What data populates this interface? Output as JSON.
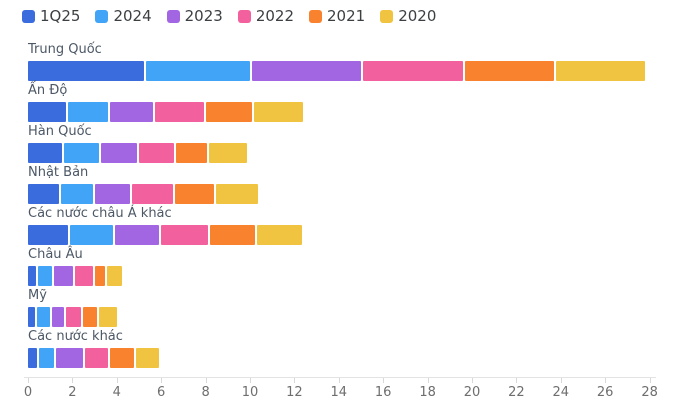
{
  "chart_data": {
    "type": "bar",
    "orientation": "horizontal",
    "stacked": true,
    "title": "",
    "xlabel": "",
    "ylabel": "",
    "xlim": [
      0,
      28
    ],
    "x_ticks": [
      0,
      2,
      4,
      6,
      8,
      10,
      12,
      14,
      16,
      18,
      20,
      22,
      24,
      26,
      28
    ],
    "grid": false,
    "legend_position": "top-left",
    "categories": [
      "Trung Quốc",
      "Ấn Độ",
      "Hàn Quốc",
      "Nhật Bản",
      "Các nước châu Á khác",
      "Châu Âu",
      "Mỹ",
      "Các nước khác"
    ],
    "series": [
      {
        "name": "1Q25",
        "color": "#3b6cde",
        "values": [
          5.3,
          1.8,
          1.6,
          1.5,
          1.9,
          0.45,
          0.4,
          0.5
        ]
      },
      {
        "name": "2024",
        "color": "#41a4f6",
        "values": [
          4.8,
          1.9,
          1.7,
          1.5,
          2.0,
          0.7,
          0.7,
          0.75
        ]
      },
      {
        "name": "2023",
        "color": "#a266e2",
        "values": [
          5.0,
          2.0,
          1.7,
          1.7,
          2.1,
          0.95,
          0.6,
          1.3
        ]
      },
      {
        "name": "2022",
        "color": "#f2619e",
        "values": [
          4.6,
          2.3,
          1.65,
          1.9,
          2.2,
          0.9,
          0.8,
          1.15
        ]
      },
      {
        "name": "2021",
        "color": "#f9822f",
        "values": [
          4.1,
          2.2,
          1.5,
          1.85,
          2.1,
          0.55,
          0.7,
          1.15
        ]
      },
      {
        "name": "2020",
        "color": "#f0c340",
        "values": [
          4.0,
          2.2,
          1.7,
          1.9,
          2.05,
          0.7,
          0.8,
          1.05
        ]
      }
    ],
    "totals": [
      27.8,
      12.4,
      9.85,
      10.35,
      12.35,
      4.25,
      4.0,
      5.9
    ]
  },
  "layout_hints": {
    "axis_text_color": "#6e6e6e",
    "category_text_color": "#4c5866",
    "legend_text_color": "#3c4043"
  }
}
